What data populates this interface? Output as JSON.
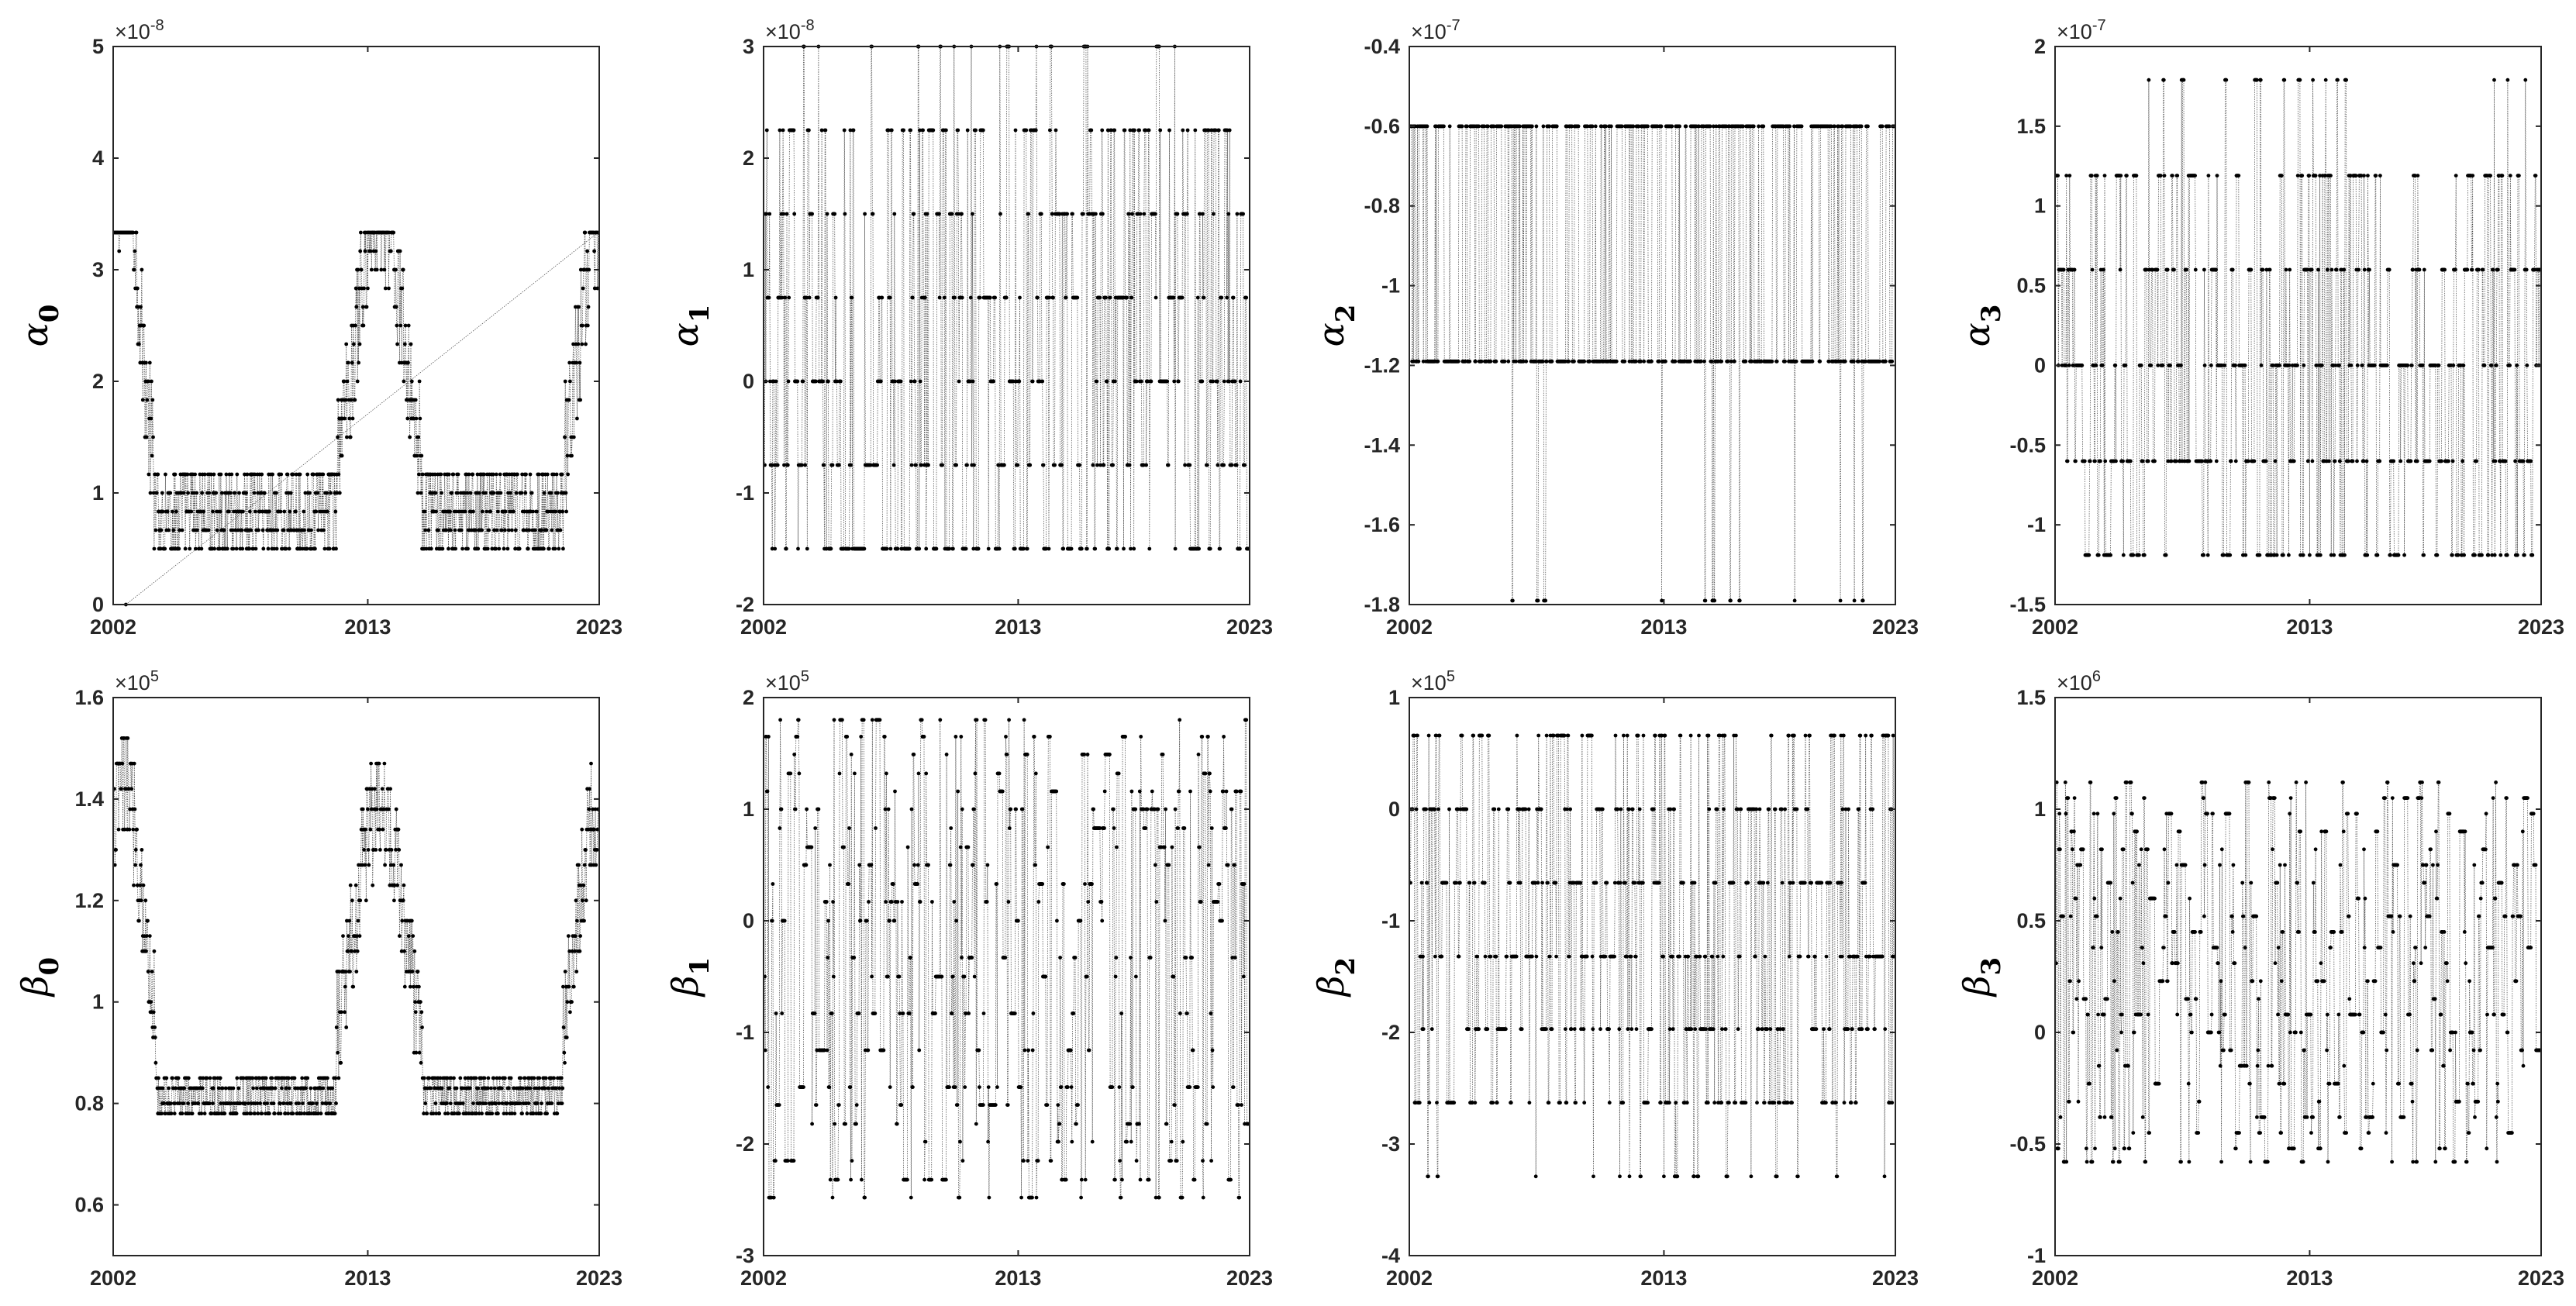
{
  "chart_data": [
    {
      "type": "line",
      "ylabel": "α0",
      "ylabel_symbol": "α",
      "ylabel_subscript": "0",
      "exponent": "-8",
      "ylim": [
        0,
        5
      ],
      "yticks": [
        "0",
        "1",
        "2",
        "3",
        "4",
        "5"
      ],
      "xlim": [
        2002,
        2023
      ],
      "xticks": [
        "2002",
        "2013",
        "2023"
      ],
      "pattern": "u_shape",
      "levels": [
        0.5,
        0.667,
        0.833,
        1.0,
        1.167,
        1.333,
        1.5,
        1.667,
        1.833,
        2.0,
        2.167,
        2.333,
        2.5,
        2.667,
        2.833,
        3.0,
        3.167,
        3.333
      ],
      "series": [
        {
          "values_summary": "high (~2.5–4.1) near 2002, low (~0.5–1.2) around 2004–2010, peak (~2.5–4.1) around 2013–2014, low (~0.5–1.2) 2015–2020, rising (~2–3.3) by 2023"
        }
      ]
    },
    {
      "type": "line",
      "ylabel": "α1",
      "ylabel_symbol": "α",
      "ylabel_subscript": "1",
      "exponent": "-8",
      "ylim": [
        -2,
        3
      ],
      "yticks": [
        "-2",
        "-1",
        "0",
        "1",
        "2",
        "3"
      ],
      "xlim": [
        2002,
        2023
      ],
      "xticks": [
        "2002",
        "2013",
        "2023"
      ],
      "pattern": "discrete",
      "levels": [
        -1.5,
        -0.75,
        0,
        0.75,
        1.5,
        2.25
      ],
      "series": [
        {
          "values_summary": "jumps among discrete levels -1.5, -0.75, 0, 0.75, 1.5, 2.25; isolated points at 3"
        }
      ]
    },
    {
      "type": "line",
      "ylabel": "α2",
      "ylabel_symbol": "α",
      "ylabel_subscript": "2",
      "exponent": "-7",
      "ylim": [
        -1.8,
        -0.4
      ],
      "yticks": [
        "-1.8",
        "-1.6",
        "-1.4",
        "-1.2",
        "-1",
        "-0.8",
        "-0.6",
        "-0.4"
      ],
      "xlim": [
        2002,
        2023
      ],
      "xticks": [
        "2002",
        "2013",
        "2023"
      ],
      "pattern": "discrete",
      "levels": [
        -0.6,
        -1.19
      ],
      "series": [
        {
          "values_summary": "mostly at -0.6 and -1.19, occasional drops to -1.79"
        }
      ]
    },
    {
      "type": "line",
      "ylabel": "α3",
      "ylabel_symbol": "α",
      "ylabel_subscript": "3",
      "exponent": "-7",
      "ylim": [
        -1.5,
        2
      ],
      "yticks": [
        "-1.5",
        "-1",
        "-0.5",
        "0",
        "0.5",
        "1",
        "1.5",
        "2"
      ],
      "xlim": [
        2002,
        2023
      ],
      "xticks": [
        "2002",
        "2013",
        "2023"
      ],
      "pattern": "discrete",
      "levels": [
        -1.19,
        -0.6,
        0,
        0.6,
        1.19
      ],
      "series": [
        {
          "values_summary": "jumps among discrete levels -1.19, -0.6, 0, 0.6, 1.19; occasional spikes to 1.79"
        }
      ]
    },
    {
      "type": "line",
      "ylabel": "β0",
      "ylabel_symbol": "β",
      "ylabel_subscript": "0",
      "exponent": "5",
      "ylim": [
        0.5,
        1.6
      ],
      "yticks": [
        "0.6",
        "0.8",
        "1",
        "1.2",
        "1.4",
        "1.6"
      ],
      "xlim": [
        2002,
        2023
      ],
      "xticks": [
        "2002",
        "2013",
        "2023"
      ],
      "pattern": "u_shape",
      "levels": [
        0.78,
        0.8,
        0.83,
        0.85,
        0.88,
        0.9,
        0.93,
        0.95,
        0.98,
        1.0,
        1.03,
        1.06,
        1.1,
        1.13,
        1.16,
        1.2,
        1.23,
        1.27,
        1.3,
        1.34,
        1.38,
        1.42,
        1.47,
        1.52
      ],
      "series": [
        {
          "values_summary": "high (~1.2–1.53) near 2002, floor ~0.78–0.88 during 2005–2010, peak (~1.2–1.53) around 2013–2014, floor 2015–2020, rising (~1.1–1.5) by 2023"
        }
      ]
    },
    {
      "type": "line",
      "ylabel": "β1",
      "ylabel_symbol": "β",
      "ylabel_subscript": "1",
      "exponent": "5",
      "ylim": [
        -3,
        2
      ],
      "yticks": [
        "-3",
        "-2",
        "-1",
        "0",
        "1",
        "2"
      ],
      "xlim": [
        2002,
        2023
      ],
      "xticks": [
        "2002",
        "2013",
        "2023"
      ],
      "pattern": "discrete",
      "levels": [
        -2.48,
        -2.32,
        -2.15,
        -1.98,
        -1.82,
        -1.65,
        -1.49,
        -1.16,
        -0.83,
        -0.5,
        -0.33,
        0,
        0.17,
        0.33,
        0.5,
        0.66,
        0.83,
        1.0,
        1.16,
        1.32,
        1.49,
        1.65,
        1.8
      ],
      "series": [
        {
          "values_summary": "oscillates between about -2.5 and 1.8 on many discrete levels"
        }
      ]
    },
    {
      "type": "line",
      "ylabel": "β2",
      "ylabel_symbol": "β",
      "ylabel_subscript": "2",
      "exponent": "5",
      "ylim": [
        -4,
        1
      ],
      "yticks": [
        "-4",
        "-3",
        "-2",
        "-1",
        "0",
        "1"
      ],
      "xlim": [
        2002,
        2023
      ],
      "xticks": [
        "2002",
        "2013",
        "2023"
      ],
      "pattern": "discrete",
      "levels": [
        -2.63,
        -1.97,
        -1.32,
        -0.66,
        0,
        0.66
      ],
      "series": [
        {
          "values_summary": "jumps among discrete levels -2.63, -1.97, -1.32, -0.66, 0, 0.66; occasional drops to -3.29"
        }
      ]
    },
    {
      "type": "line",
      "ylabel": "β3",
      "ylabel_symbol": "β",
      "ylabel_subscript": "3",
      "exponent": "6",
      "ylim": [
        -1,
        1.5
      ],
      "yticks": [
        "-1",
        "-0.5",
        "0",
        "0.5",
        "1",
        "1.5"
      ],
      "xlim": [
        2002,
        2023
      ],
      "xticks": [
        "2002",
        "2013",
        "2023"
      ],
      "pattern": "discrete",
      "levels": [
        -0.58,
        -0.52,
        -0.45,
        -0.38,
        -0.31,
        -0.23,
        -0.15,
        -0.08,
        0,
        0.08,
        0.15,
        0.23,
        0.31,
        0.38,
        0.45,
        0.52,
        0.6,
        0.67,
        0.75,
        0.82,
        0.9,
        0.98,
        1.05,
        1.12
      ],
      "series": [
        {
          "values_summary": "mostly between about -0.6 and 0.4 with spikes up to ~1.1"
        }
      ]
    }
  ]
}
